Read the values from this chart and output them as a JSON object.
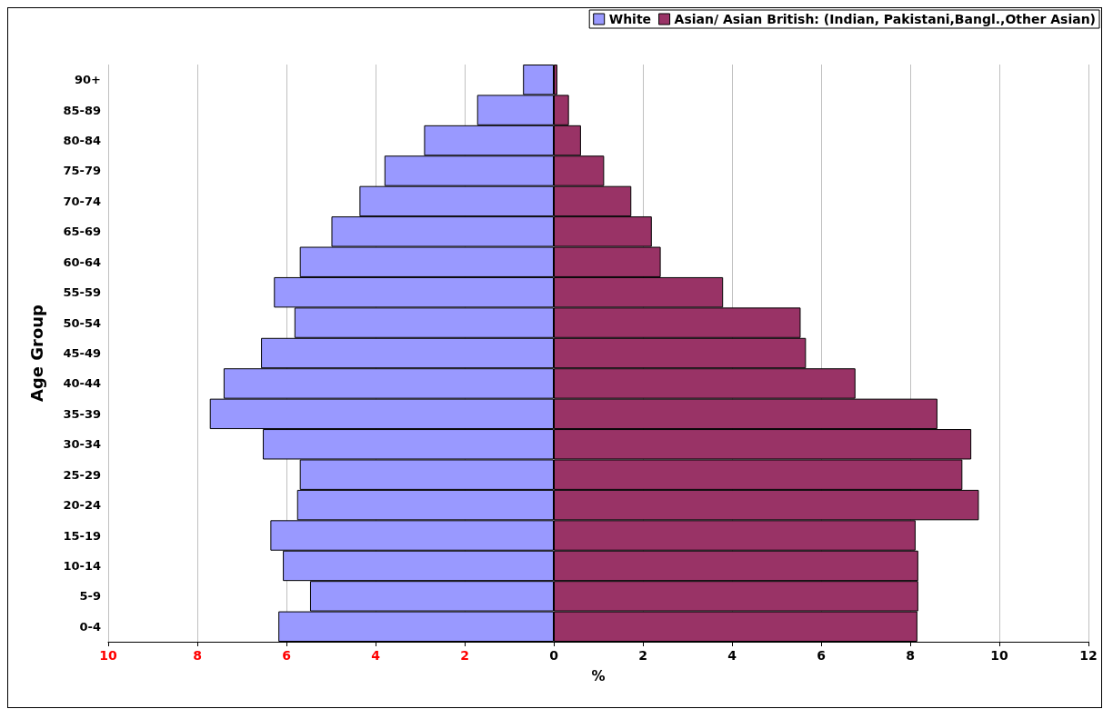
{
  "chart_data": {
    "type": "bar",
    "orientation": "horizontal",
    "xlabel": "%",
    "ylabel": "Age Group",
    "categories": [
      "90+",
      "85-89",
      "80-84",
      "75-79",
      "70-74",
      "65-69",
      "60-64",
      "55-59",
      "50-54",
      "45-49",
      "40-44",
      "35-39",
      "30-34",
      "25-29",
      "20-24",
      "15-19",
      "10-14",
      "5-9",
      "0-4"
    ],
    "series": [
      {
        "name": "White",
        "color": "#9999ff",
        "values": [
          -0.69,
          -1.72,
          -2.91,
          -3.8,
          -4.36,
          -4.99,
          -5.7,
          -6.28,
          -5.82,
          -6.57,
          -7.41,
          -7.72,
          -6.53,
          -5.7,
          -5.76,
          -6.36,
          -6.08,
          -5.47,
          -6.18
        ]
      },
      {
        "name": "Asian/ Asian British: (Indian, Pakistani,Bangl.,Other Asian)",
        "color": "#993366",
        "values": [
          0.08,
          0.34,
          0.61,
          1.13,
          1.74,
          2.2,
          2.4,
          3.8,
          5.54,
          5.66,
          6.77,
          8.61,
          9.37,
          9.17,
          9.54,
          8.12,
          8.18,
          8.18,
          8.16
        ]
      }
    ],
    "xlim": [
      -10,
      12
    ],
    "xticks": [
      {
        "value": -10,
        "label": "10"
      },
      {
        "value": -8,
        "label": "8"
      },
      {
        "value": -6,
        "label": "6"
      },
      {
        "value": -4,
        "label": "4"
      },
      {
        "value": -2,
        "label": "2"
      },
      0,
      2,
      4,
      6,
      8,
      10,
      12
    ],
    "grid": "x",
    "legend": "top right",
    "stacked": true
  }
}
